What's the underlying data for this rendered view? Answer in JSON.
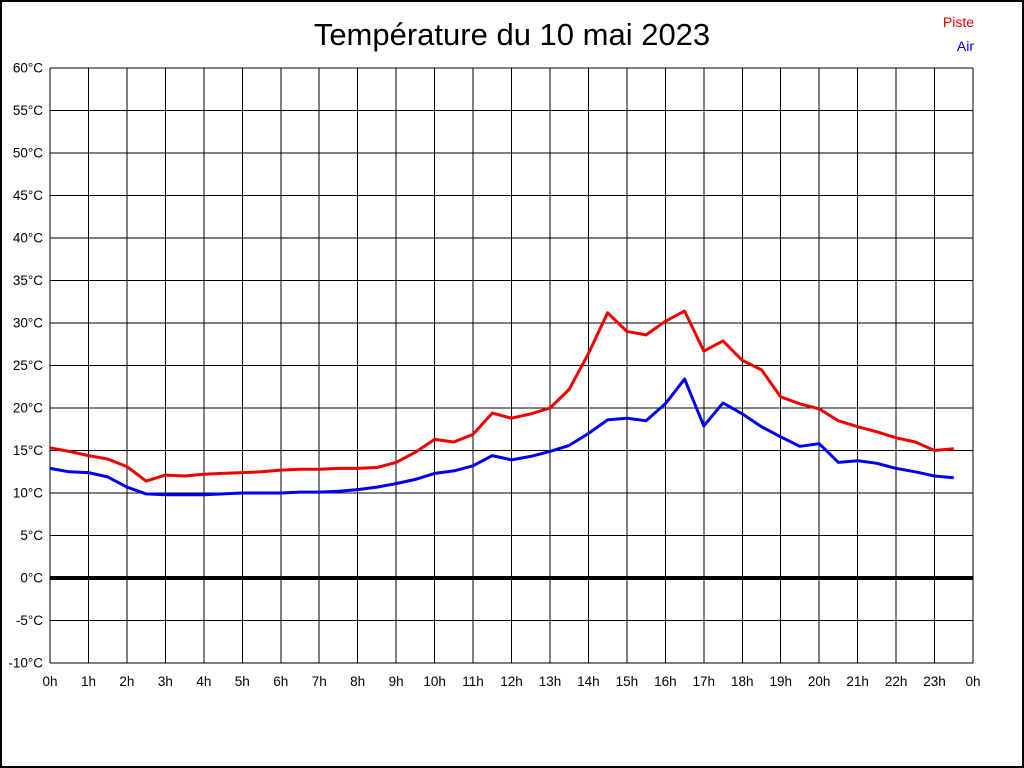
{
  "title": "Température du 10 mai 2023",
  "legend": [
    {
      "label": "Piste",
      "color": "#ee0000"
    },
    {
      "label": "Air",
      "color": "#0000ee"
    }
  ],
  "chart_data": {
    "type": "line",
    "title": "Température du 10 mai 2023",
    "xlabel": "",
    "ylabel": "",
    "xlim": [
      0,
      24
    ],
    "ylim": [
      -10,
      60
    ],
    "grid": true,
    "grid_color": "#000000",
    "zero_line": true,
    "zero_line_value": 0,
    "legend_position": "top-right",
    "x_tick_labels": [
      "0h",
      "1h",
      "2h",
      "3h",
      "4h",
      "5h",
      "6h",
      "7h",
      "8h",
      "9h",
      "10h",
      "11h",
      "12h",
      "13h",
      "14h",
      "15h",
      "16h",
      "17h",
      "18h",
      "19h",
      "20h",
      "21h",
      "22h",
      "23h",
      "0h"
    ],
    "y_tick_labels": [
      "-10°C",
      "-5°C",
      "0°C",
      "5°C",
      "10°C",
      "15°C",
      "20°C",
      "25°C",
      "30°C",
      "35°C",
      "40°C",
      "45°C",
      "50°C",
      "55°C",
      "60°C"
    ],
    "y_tick_values": [
      -10,
      -5,
      0,
      5,
      10,
      15,
      20,
      25,
      30,
      35,
      40,
      45,
      50,
      55,
      60
    ],
    "x": [
      0,
      0.5,
      1,
      1.5,
      2,
      2.5,
      3,
      3.5,
      4,
      4.5,
      5,
      5.5,
      6,
      6.5,
      7,
      7.5,
      8,
      8.5,
      9,
      9.5,
      10,
      10.5,
      11,
      11.5,
      12,
      12.5,
      13,
      13.5,
      14,
      14.5,
      15,
      15.5,
      16,
      16.5,
      17,
      17.5,
      18,
      18.5,
      19,
      19.5,
      20,
      20.5,
      21,
      21.5,
      22,
      22.5,
      23,
      23.5
    ],
    "series": [
      {
        "name": "Piste",
        "color": "#ee0000",
        "values": [
          15.3,
          14.9,
          14.4,
          14.0,
          13.1,
          11.4,
          12.1,
          12.0,
          12.2,
          12.3,
          12.4,
          12.5,
          12.7,
          12.8,
          12.8,
          12.9,
          12.9,
          13.0,
          13.6,
          14.8,
          16.3,
          16.0,
          16.9,
          19.4,
          18.8,
          19.3,
          20.0,
          22.2,
          26.4,
          31.2,
          29.0,
          28.6,
          30.2,
          31.4,
          26.7,
          27.9,
          25.6,
          24.5,
          21.3,
          20.5,
          19.9,
          18.5,
          17.8,
          17.2,
          16.5,
          16.0,
          15.0,
          15.2
        ]
      },
      {
        "name": "Air",
        "color": "#0000ee",
        "values": [
          12.9,
          12.5,
          12.4,
          11.9,
          10.7,
          9.9,
          9.8,
          9.8,
          9.8,
          9.9,
          10.0,
          10.0,
          10.0,
          10.1,
          10.1,
          10.2,
          10.4,
          10.7,
          11.1,
          11.6,
          12.3,
          12.6,
          13.2,
          14.4,
          13.9,
          14.3,
          14.9,
          15.6,
          17.0,
          18.6,
          18.8,
          18.5,
          20.5,
          23.4,
          17.9,
          20.6,
          19.3,
          17.8,
          16.6,
          15.5,
          15.8,
          13.6,
          13.8,
          13.5,
          12.9,
          12.5,
          12.0,
          11.8
        ]
      }
    ]
  }
}
